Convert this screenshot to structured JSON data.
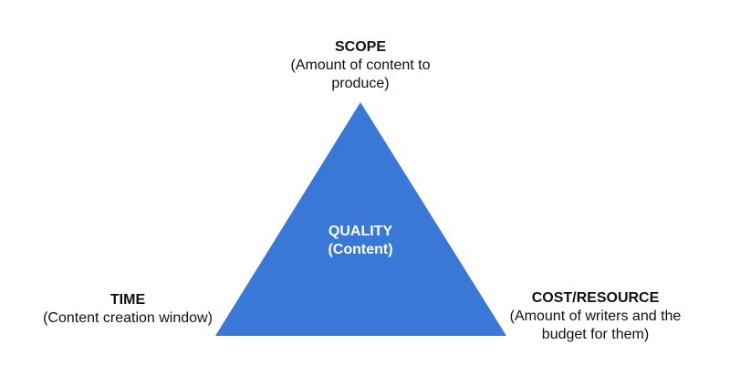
{
  "colors": {
    "triangle": "#3a78d8",
    "center_text": "#ffffff"
  },
  "scope": {
    "title": "SCOPE",
    "line1": "(Amount of content to",
    "line2": "produce)"
  },
  "quality": {
    "title": "QUALITY",
    "subtitle": "(Content)"
  },
  "time": {
    "title": "TIME",
    "line1": "(Content creation window)"
  },
  "cost": {
    "title": "COST/RESOURCE",
    "line1": "(Amount of writers and the",
    "line2": "budget for them)"
  }
}
